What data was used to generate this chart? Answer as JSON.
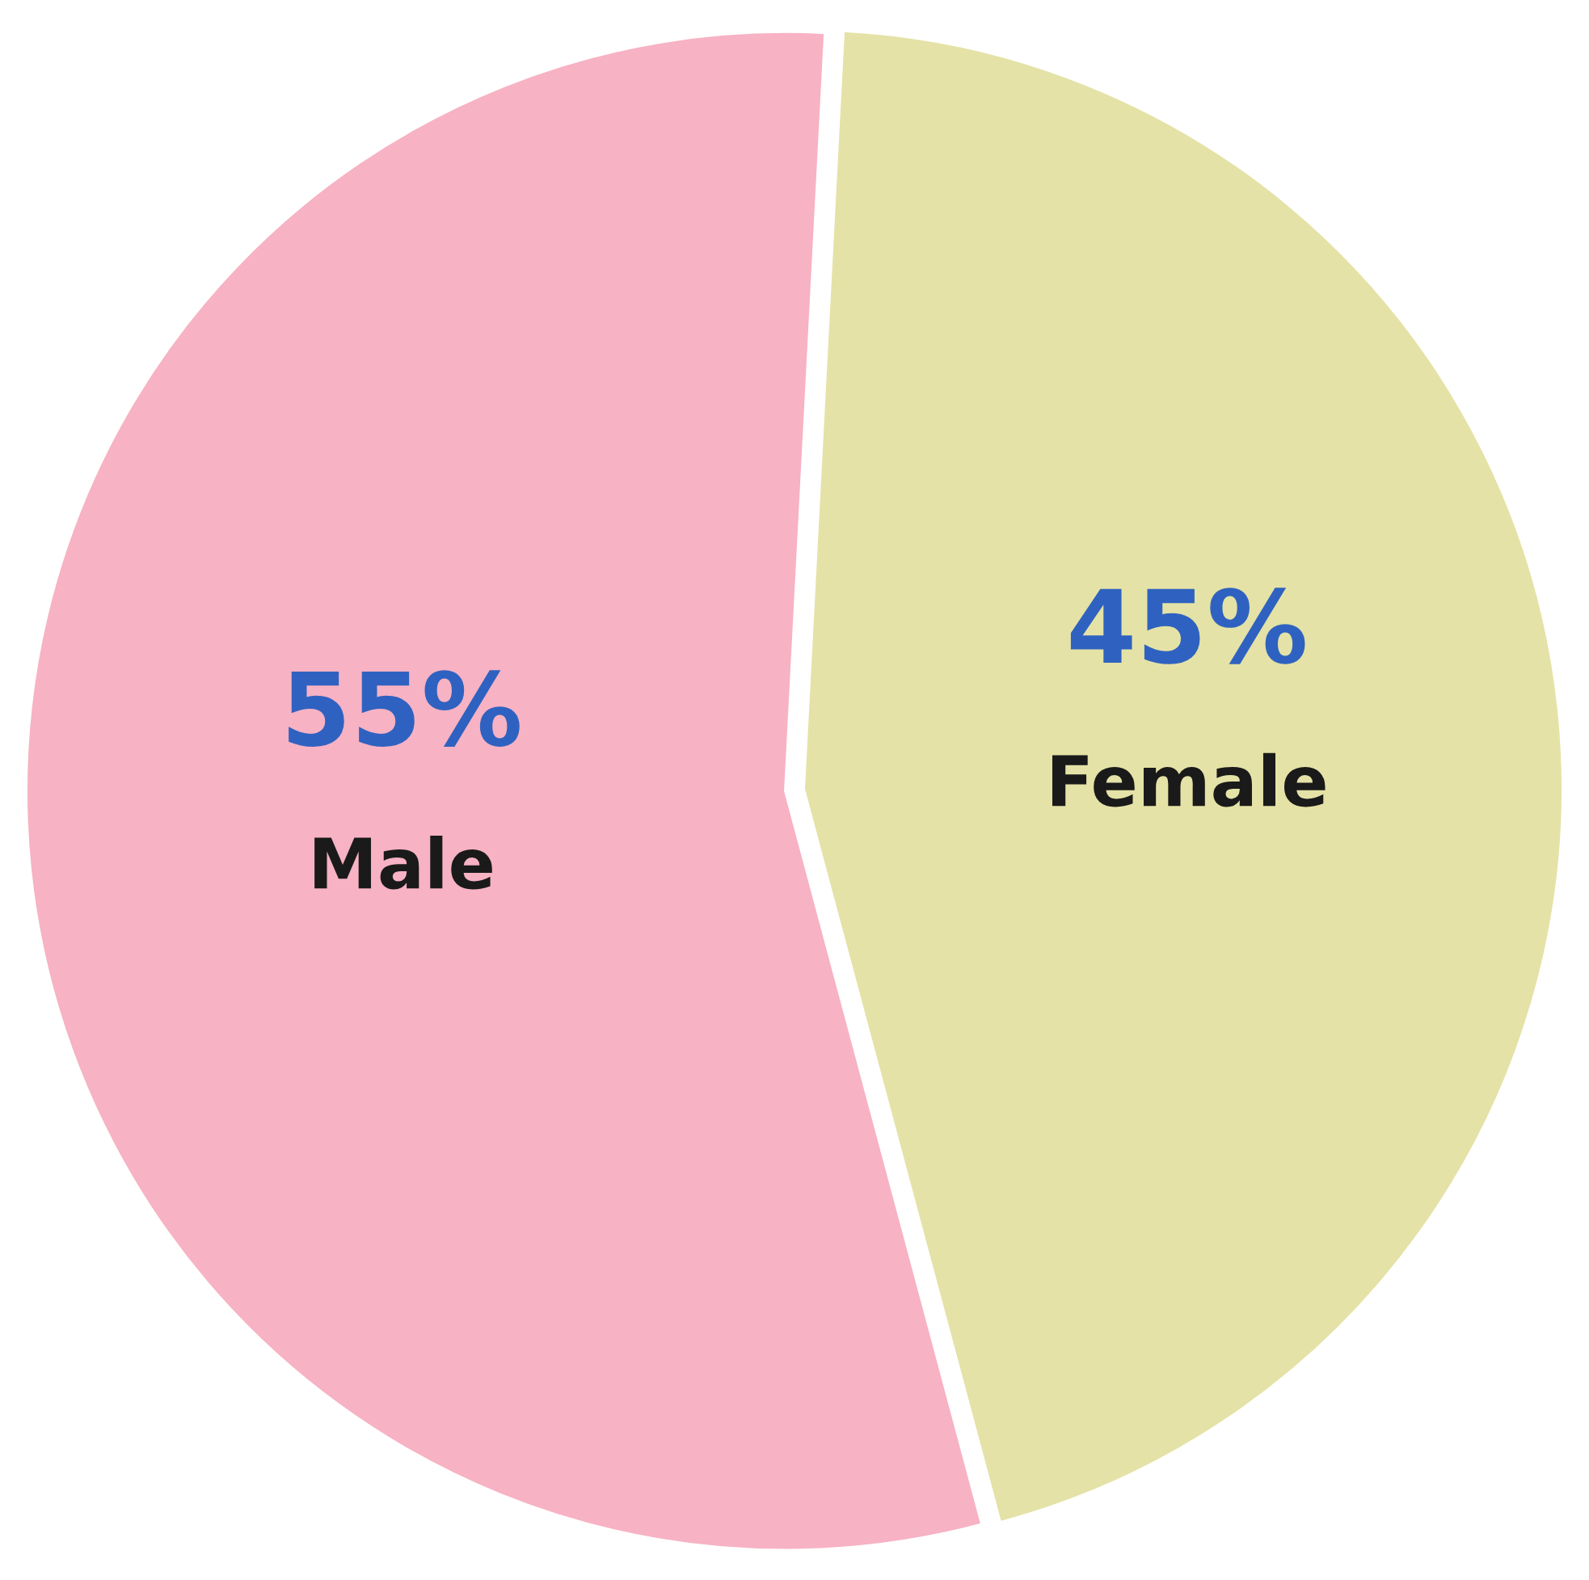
{
  "chart_data": {
    "type": "pie",
    "categories": [
      "Female",
      "Male"
    ],
    "values": [
      45,
      55
    ],
    "value_labels": [
      "45%",
      "55%"
    ],
    "colors": [
      "#e4e2a6",
      "#f7b2c4"
    ],
    "legend": false
  }
}
